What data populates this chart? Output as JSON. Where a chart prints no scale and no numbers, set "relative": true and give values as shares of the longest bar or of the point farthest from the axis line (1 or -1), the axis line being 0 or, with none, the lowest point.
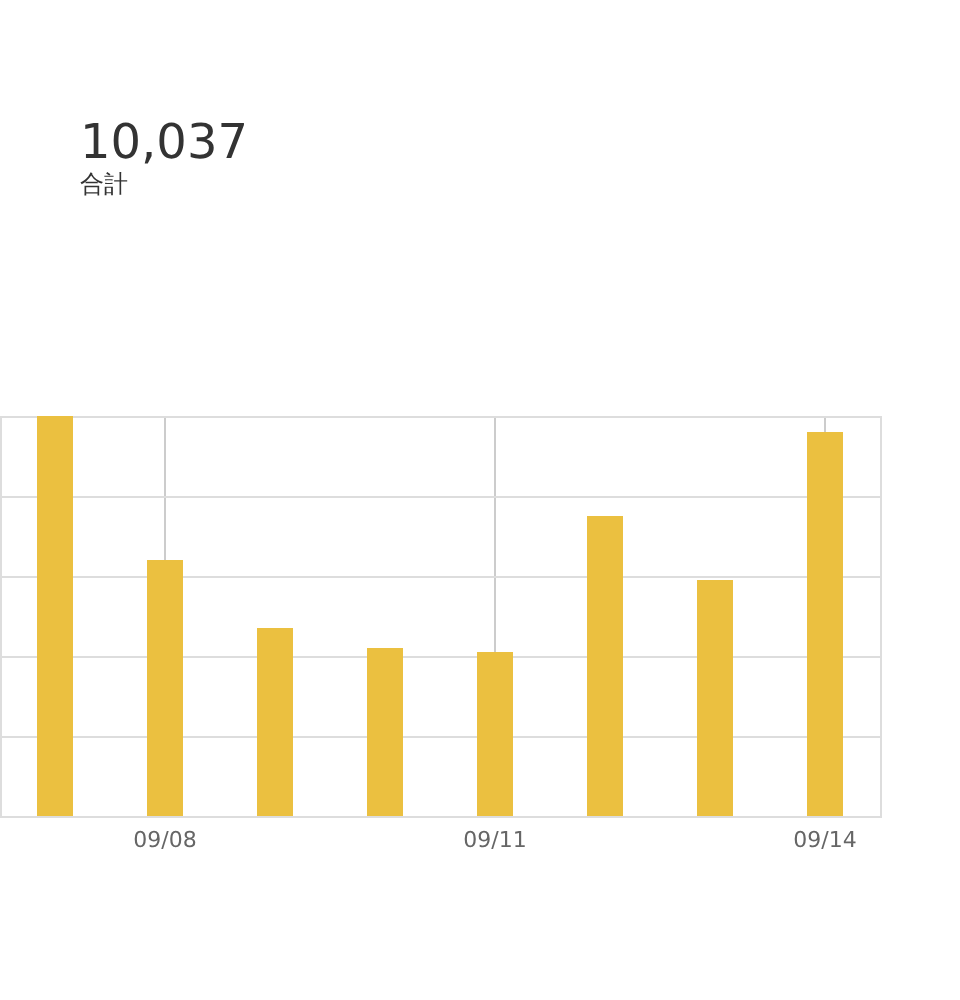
{
  "chart_data": {
    "type": "bar",
    "title": "10,037",
    "subtitle": "合計",
    "categories": [
      null,
      "09/08",
      null,
      null,
      "09/11",
      null,
      null,
      "09/14"
    ],
    "values": [
      1,
      0.64,
      0.47,
      0.42,
      0.41,
      0.75,
      0.59,
      0.96
    ],
    "color": "#ebc040",
    "relative": true,
    "grid": true
  }
}
